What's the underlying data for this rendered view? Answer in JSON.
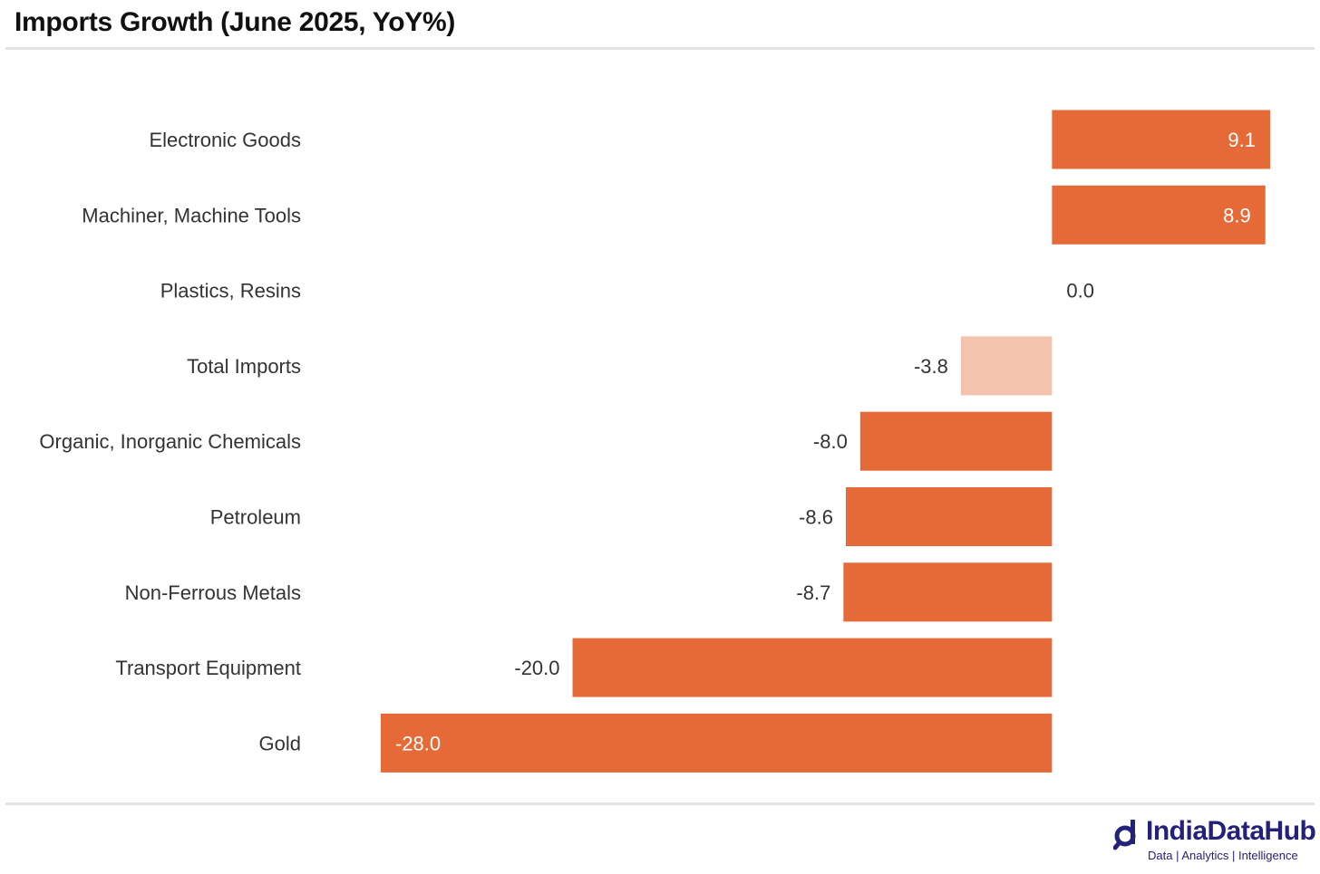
{
  "header": {
    "title": "Imports Growth (June 2025, YoY%)"
  },
  "chart_data": {
    "type": "bar",
    "orientation": "horizontal",
    "title": "Imports Growth (June 2025, YoY%)",
    "xlabel": "",
    "ylabel": "",
    "xlim": [
      -28,
      9.1
    ],
    "categories": [
      "Electronic Goods",
      "Machiner, Machine Tools",
      "Plastics, Resins",
      "Total Imports",
      "Organic, Inorganic Chemicals",
      "Petroleum",
      "Non-Ferrous Metals",
      "Transport Equipment",
      "Gold"
    ],
    "values": [
      9.1,
      8.9,
      0.0,
      -3.8,
      -8.0,
      -8.6,
      -8.7,
      -20.0,
      -28.0
    ],
    "value_labels": [
      "9.1",
      "8.9",
      "0.0",
      "-3.8",
      "-8.0",
      "-8.6",
      "-8.7",
      "-20.0",
      "-28.0"
    ],
    "colors": {
      "bar": "#e56a37",
      "highlight": "#f4c3ae",
      "highlight_category": "Total Imports"
    },
    "grid": false,
    "legend": "none"
  },
  "branding": {
    "name": "IndiaDataHub",
    "tagline": "Data | Analytics | Intelligence",
    "color": "#24217a"
  }
}
